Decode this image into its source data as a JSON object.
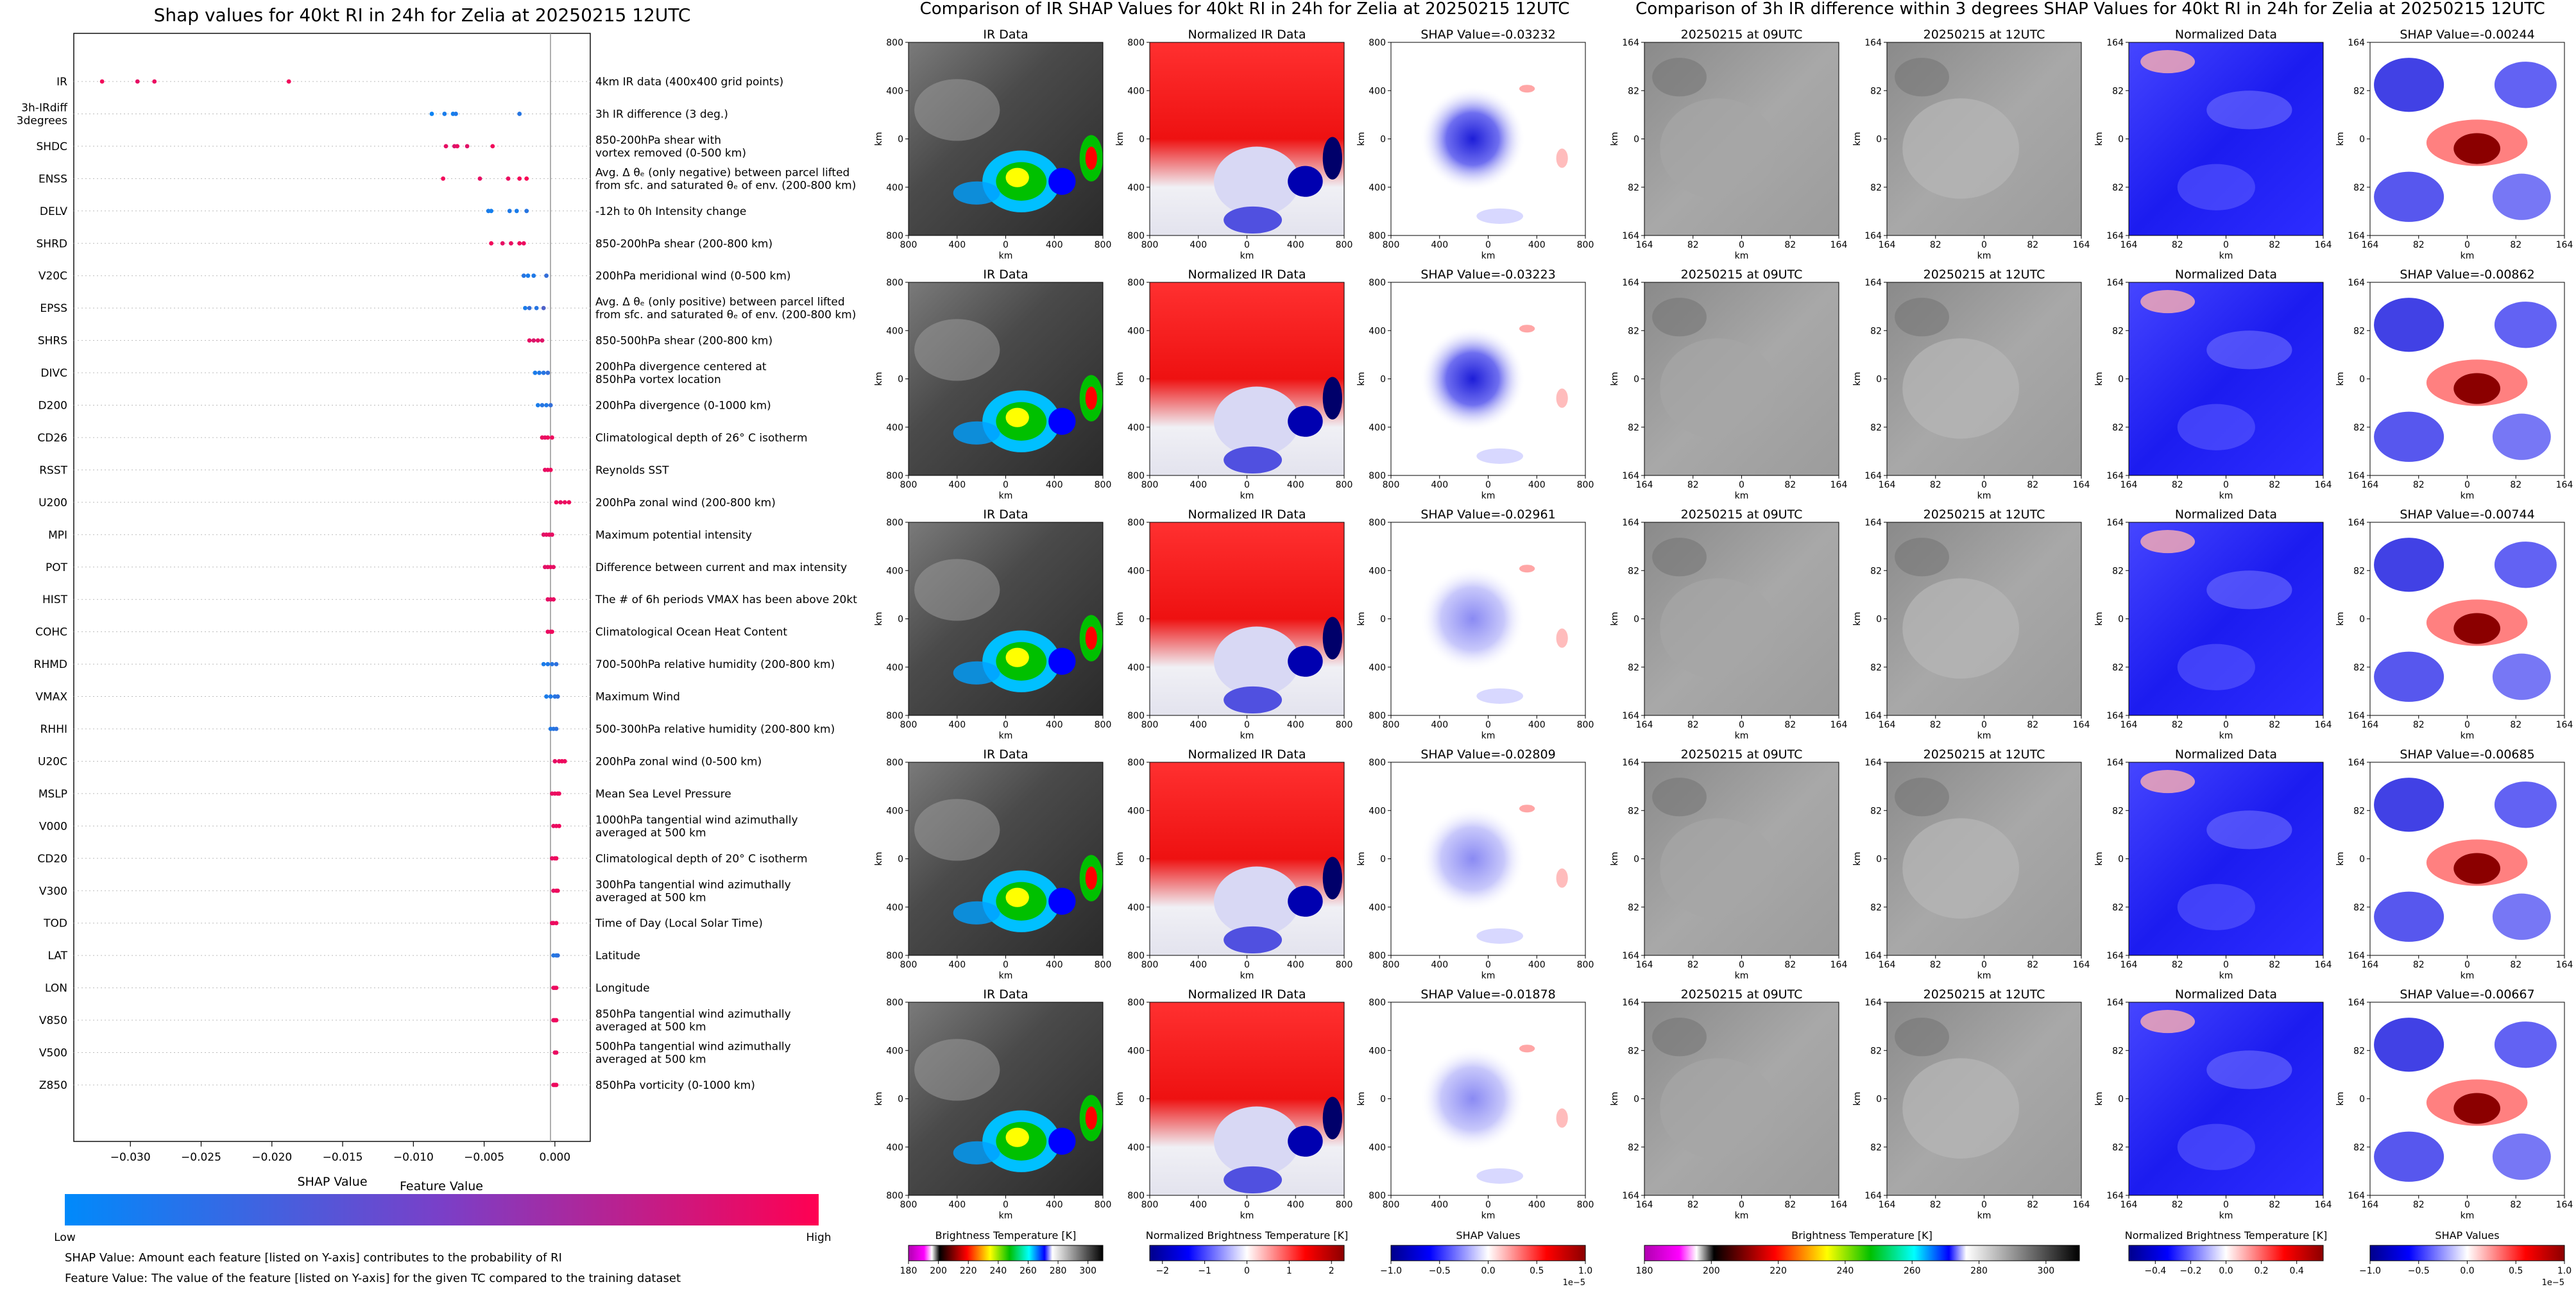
{
  "chart_data": [
    {
      "type": "scatter",
      "panel": "shap-summary",
      "title": "Shap values for 40kt RI in 24h for Zelia at 20250215 12UTC",
      "xlabel": "SHAP Value",
      "ylabel": "",
      "xlim": [
        -0.034,
        0.0025
      ],
      "xticks": [
        -0.03,
        -0.025,
        -0.02,
        -0.015,
        -0.01,
        -0.005,
        0.0
      ],
      "xtick_labels": [
        "−0.030",
        "−0.025",
        "−0.020",
        "−0.015",
        "−0.010",
        "−0.005",
        "0.000"
      ],
      "features": [
        {
          "name": "IR",
          "desc": [
            "4km IR data (400x400 grid points)"
          ],
          "points": [
            [
              -0.032,
              0.95
            ],
            [
              -0.0295,
              0.9
            ],
            [
              -0.0283,
              0.92
            ],
            [
              -0.0188,
              0.95
            ]
          ]
        },
        {
          "name": "3h-IRdiff|3degrees",
          "desc": [
            "3h IR difference (3 deg.)"
          ],
          "points": [
            [
              -0.0087,
              0.05
            ],
            [
              -0.0078,
              0.1
            ],
            [
              -0.0072,
              0.08
            ],
            [
              -0.007,
              0.12
            ],
            [
              -0.0025,
              0.15
            ]
          ]
        },
        {
          "name": "SHDC",
          "desc": [
            "850-200hPa shear with",
            "vortex removed (0-500 km)"
          ],
          "points": [
            [
              -0.0077,
              0.9
            ],
            [
              -0.0071,
              0.85
            ],
            [
              -0.0069,
              0.92
            ],
            [
              -0.0062,
              0.88
            ],
            [
              -0.0044,
              0.95
            ]
          ]
        },
        {
          "name": "ENSS",
          "desc": [
            "Avg. Δ θₑ (only negative) between parcel lifted",
            "from sfc. and saturated θₑ of env. (200-800 km)"
          ],
          "points": [
            [
              -0.0079,
              0.95
            ],
            [
              -0.0053,
              0.9
            ],
            [
              -0.0033,
              0.92
            ],
            [
              -0.0025,
              0.96
            ],
            [
              -0.002,
              0.98
            ]
          ]
        },
        {
          "name": "DELV",
          "desc": [
            "-12h to 0h Intensity change"
          ],
          "points": [
            [
              -0.0047,
              0.1
            ],
            [
              -0.0045,
              0.08
            ],
            [
              -0.0032,
              0.12
            ],
            [
              -0.0027,
              0.1
            ],
            [
              -0.002,
              0.15
            ]
          ]
        },
        {
          "name": "SHRD",
          "desc": [
            "850-200hPa shear (200-800 km)"
          ],
          "points": [
            [
              -0.0045,
              0.95
            ],
            [
              -0.0037,
              0.9
            ],
            [
              -0.0031,
              0.92
            ],
            [
              -0.0025,
              0.94
            ],
            [
              -0.0022,
              0.93
            ]
          ]
        },
        {
          "name": "V20C",
          "desc": [
            "200hPa meridional wind (0-500 km)"
          ],
          "points": [
            [
              -0.0022,
              0.15
            ],
            [
              -0.0019,
              0.1
            ],
            [
              -0.0015,
              0.12
            ],
            [
              -0.0006,
              0.2
            ]
          ]
        },
        {
          "name": "EPSS",
          "desc": [
            "Avg. Δ θₑ (only positive) between parcel lifted",
            "from sfc. and saturated θₑ of env. (200-800 km)"
          ],
          "points": [
            [
              -0.0021,
              0.1
            ],
            [
              -0.0018,
              0.2
            ],
            [
              -0.0013,
              0.15
            ],
            [
              -0.0008,
              0.3
            ]
          ]
        },
        {
          "name": "SHRS",
          "desc": [
            "850-500hPa shear (200-800 km)"
          ],
          "points": [
            [
              -0.0018,
              0.9
            ],
            [
              -0.0015,
              0.85
            ],
            [
              -0.0012,
              0.9
            ],
            [
              -0.0009,
              0.88
            ]
          ]
        },
        {
          "name": "DIVC",
          "desc": [
            "200hPa divergence centered at",
            "850hPa vortex location"
          ],
          "points": [
            [
              -0.0014,
              0.1
            ],
            [
              -0.0011,
              0.12
            ],
            [
              -0.0008,
              0.15
            ],
            [
              -0.0005,
              0.2
            ]
          ]
        },
        {
          "name": "D200",
          "desc": [
            "200hPa divergence (0-1000 km)"
          ],
          "points": [
            [
              -0.0012,
              0.1
            ],
            [
              -0.0009,
              0.15
            ],
            [
              -0.0006,
              0.12
            ],
            [
              -0.0003,
              0.2
            ]
          ]
        },
        {
          "name": "CD26",
          "desc": [
            "Climatological depth of 26° C isotherm"
          ],
          "points": [
            [
              -0.0009,
              0.92
            ],
            [
              -0.0007,
              0.9
            ],
            [
              -0.0005,
              0.94
            ],
            [
              -0.0002,
              0.93
            ]
          ]
        },
        {
          "name": "RSST",
          "desc": [
            "Reynolds SST"
          ],
          "points": [
            [
              -0.0007,
              0.9
            ],
            [
              -0.0005,
              0.92
            ],
            [
              -0.0003,
              0.94
            ]
          ]
        },
        {
          "name": "U200",
          "desc": [
            "200hPa zonal wind (200-800 km)"
          ],
          "points": [
            [
              0.0001,
              0.95
            ],
            [
              0.0004,
              0.9
            ],
            [
              0.0007,
              0.92
            ],
            [
              0.001,
              0.94
            ]
          ]
        },
        {
          "name": "MPI",
          "desc": [
            "Maximum potential intensity"
          ],
          "points": [
            [
              -0.0008,
              0.88
            ],
            [
              -0.0006,
              0.9
            ],
            [
              -0.0004,
              0.92
            ],
            [
              -0.0002,
              0.9
            ]
          ]
        },
        {
          "name": "POT",
          "desc": [
            "Difference between current and max intensity"
          ],
          "points": [
            [
              -0.0007,
              0.88
            ],
            [
              -0.0005,
              0.9
            ],
            [
              -0.0003,
              0.92
            ],
            [
              -0.0001,
              0.9
            ]
          ]
        },
        {
          "name": "HIST",
          "desc": [
            "The # of 6h periods VMAX has been above 20kt"
          ],
          "points": [
            [
              -0.0005,
              0.9
            ],
            [
              -0.0003,
              0.88
            ],
            [
              -0.0001,
              0.92
            ]
          ]
        },
        {
          "name": "COHC",
          "desc": [
            "Climatological Ocean Heat Content"
          ],
          "points": [
            [
              -0.0005,
              0.92
            ],
            [
              -0.0003,
              0.9
            ],
            [
              -0.0002,
              0.94
            ]
          ]
        },
        {
          "name": "RHMD",
          "desc": [
            "700-500hPa relative humidity (200-800 km)"
          ],
          "points": [
            [
              -0.0008,
              0.1
            ],
            [
              -0.0005,
              0.12
            ],
            [
              -0.0002,
              0.15
            ],
            [
              0.0001,
              0.18
            ]
          ]
        },
        {
          "name": "VMAX",
          "desc": [
            "Maximum Wind"
          ],
          "points": [
            [
              -0.0006,
              0.1
            ],
            [
              -0.0003,
              0.12
            ],
            [
              0.0,
              0.15
            ],
            [
              0.0002,
              0.18
            ]
          ]
        },
        {
          "name": "RHHI",
          "desc": [
            "500-300hPa relative humidity (200-800 km)"
          ],
          "points": [
            [
              -0.0003,
              0.12
            ],
            [
              -0.0001,
              0.15
            ],
            [
              0.0001,
              0.18
            ]
          ]
        },
        {
          "name": "U20C",
          "desc": [
            "200hPa zonal wind (0-500 km)"
          ],
          "points": [
            [
              0.0,
              0.9
            ],
            [
              0.0003,
              0.92
            ],
            [
              0.0005,
              0.94
            ],
            [
              0.0007,
              0.93
            ]
          ]
        },
        {
          "name": "MSLP",
          "desc": [
            "Mean Sea Level Pressure"
          ],
          "points": [
            [
              -0.0002,
              0.9
            ],
            [
              0.0,
              0.92
            ],
            [
              0.0002,
              0.94
            ],
            [
              0.0003,
              0.93
            ]
          ]
        },
        {
          "name": "V000",
          "desc": [
            "1000hPa tangential wind azimuthally",
            "averaged at 500 km"
          ],
          "points": [
            [
              -0.0001,
              0.9
            ],
            [
              0.0001,
              0.92
            ],
            [
              0.0003,
              0.94
            ]
          ]
        },
        {
          "name": "CD20",
          "desc": [
            "Climatological depth of 20° C isotherm"
          ],
          "points": [
            [
              -0.0002,
              0.9
            ],
            [
              0.0,
              0.92
            ],
            [
              0.0001,
              0.94
            ]
          ]
        },
        {
          "name": "V300",
          "desc": [
            "300hPa tangential wind azimuthally",
            "averaged at 500 km"
          ],
          "points": [
            [
              -0.0001,
              0.9
            ],
            [
              0.0001,
              0.92
            ],
            [
              0.0002,
              0.94
            ]
          ]
        },
        {
          "name": "TOD",
          "desc": [
            "Time of Day (Local Solar Time)"
          ],
          "points": [
            [
              -0.0002,
              0.9
            ],
            [
              -0.0001,
              0.92
            ],
            [
              0.0001,
              0.94
            ]
          ]
        },
        {
          "name": "LAT",
          "desc": [
            "Latitude"
          ],
          "points": [
            [
              -0.0001,
              0.15
            ],
            [
              0.0001,
              0.12
            ],
            [
              0.0002,
              0.18
            ]
          ]
        },
        {
          "name": "LON",
          "desc": [
            "Longitude"
          ],
          "points": [
            [
              -0.0001,
              0.92
            ],
            [
              0.0,
              0.9
            ],
            [
              0.0001,
              0.94
            ]
          ]
        },
        {
          "name": "V850",
          "desc": [
            "850hPa tangential wind azimuthally",
            "averaged at 500 km"
          ],
          "points": [
            [
              -0.0001,
              0.9
            ],
            [
              0.0,
              0.92
            ],
            [
              0.0001,
              0.94
            ]
          ]
        },
        {
          "name": "V500",
          "desc": [
            "500hPa tangential wind azimuthally",
            "averaged at 500 km"
          ],
          "points": [
            [
              0.0,
              0.9
            ],
            [
              0.0001,
              0.92
            ]
          ]
        },
        {
          "name": "Z850",
          "desc": [
            "850hPa vorticity (0-1000 km)"
          ],
          "points": [
            [
              -0.0001,
              0.9
            ],
            [
              0.0,
              0.92
            ],
            [
              0.0001,
              0.94
            ]
          ]
        }
      ],
      "colorbar": {
        "title": "Feature Value",
        "low": "Low",
        "high": "High",
        "colors": [
          "#008afb",
          "#ff0052"
        ]
      },
      "notes": [
        "SHAP Value: Amount each feature [listed on Y-axis] contributes to the probability of RI",
        "Feature Value: The value of the feature [listed on Y-axis] for the given TC compared to the training dataset"
      ]
    },
    {
      "type": "heatmap",
      "panel": "ir-shap-grid",
      "title": "Comparison of IR SHAP Values for 40kt RI in 24h for Zelia at 20250215 12UTC",
      "axis_label": "km",
      "ticks_x": [
        "800",
        "400",
        "0",
        "400",
        "800"
      ],
      "ticks_y": [
        "800",
        "400",
        "0",
        "400",
        "800"
      ],
      "col_titles": [
        "IR Data",
        "Normalized IR Data"
      ],
      "shap_values": [
        "-0.03232",
        "-0.03223",
        "-0.02961",
        "-0.02809",
        "-0.01878"
      ],
      "shap_prefix": "SHAP Value=",
      "colorbars": [
        {
          "label": "Brightness Temperature [K]",
          "ticks": [
            "180",
            "200",
            "220",
            "240",
            "260",
            "280",
            "300"
          ],
          "range": [
            180,
            310
          ]
        },
        {
          "label": "Normalized Brightness Temperature [K]",
          "ticks": [
            "−2",
            "−1",
            "0",
            "1",
            "2"
          ],
          "range": [
            -2.3,
            2.3
          ]
        },
        {
          "label": "SHAP Values",
          "ticks": [
            "−1.0",
            "−0.5",
            "0.0",
            "0.5",
            "1.0"
          ],
          "range": [
            -1,
            1
          ],
          "exponent": "1e−5"
        }
      ]
    },
    {
      "type": "heatmap",
      "panel": "irdiff-shap-grid",
      "title": "Comparison of 3h IR difference within 3 degrees SHAP Values for 40kt RI in 24h for Zelia at 20250215 12UTC",
      "axis_label": "km",
      "ticks_x": [
        "164",
        "82",
        "0",
        "82",
        "164"
      ],
      "ticks_y": [
        "164",
        "82",
        "0",
        "82",
        "164"
      ],
      "col_titles": [
        "20250215 at 09UTC",
        "20250215 at 12UTC",
        "Normalized Data"
      ],
      "shap_values": [
        "-0.00244",
        "-0.00862",
        "-0.00744",
        "-0.00685",
        "-0.00667"
      ],
      "shap_prefix": "SHAP Value=",
      "colorbars": [
        {
          "label": "Brightness Temperature [K]",
          "ticks": [
            "180",
            "200",
            "220",
            "240",
            "260",
            "280",
            "300"
          ],
          "range": [
            180,
            310
          ]
        },
        {
          "label": "Normalized Brightness Temperature [K]",
          "ticks": [
            "−0.4",
            "−0.2",
            "0.0",
            "0.2",
            "0.4"
          ],
          "range": [
            -0.55,
            0.55
          ]
        },
        {
          "label": "SHAP Values",
          "ticks": [
            "−1.0",
            "−0.5",
            "0.0",
            "0.5",
            "1.0"
          ],
          "range": [
            -1,
            1
          ],
          "exponent": "1e−5"
        }
      ]
    }
  ]
}
